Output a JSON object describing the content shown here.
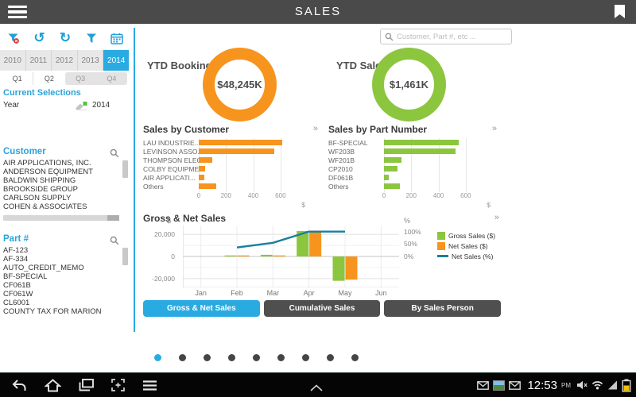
{
  "colors": {
    "accent_blue": "#29abe2",
    "icon_blue": "#219fd8",
    "orange": "#f7941e",
    "green": "#8cc63f",
    "teal": "#1a7f9c",
    "dark_gray": "#4a4a4a"
  },
  "top_bar": {
    "title": "SALES"
  },
  "icons": {
    "hamburger": "menu-lines",
    "bookmark": "bookmark",
    "clear_filter": "funnel+red-dot",
    "undo": "↺",
    "redo": "↻",
    "filter": "funnel",
    "calendar": "calendar-grid",
    "search": "magnifier",
    "erase_selection": "eraser+green-square",
    "expand": "»",
    "back": "curved-arrow",
    "home": "house",
    "recents": "stacked-windows",
    "screenshot": "capture-frame",
    "menu": "three-lines",
    "caret": "chevron-up",
    "envelope": "envelope",
    "picture": "photo-thumbnail",
    "mute": "speaker-x",
    "wifi": "wifi-fan",
    "signal": "signal-triangle",
    "battery": "battery-charging"
  },
  "sidebar": {
    "years": [
      "2010",
      "2011",
      "2012",
      "2013",
      "2014"
    ],
    "selected_year": "2014",
    "quarters": [
      "Q1",
      "Q2",
      "Q3",
      "Q4"
    ],
    "enabled_quarters": [
      "Q1",
      "Q2"
    ],
    "current_selections": {
      "title": "Current Selections",
      "rows": [
        {
          "field": "Year",
          "value": "2014"
        }
      ]
    },
    "customer": {
      "title": "Customer",
      "items": [
        "AIR APPLICATIONS, INC.",
        "ANDERSON EQUIPMENT",
        "BALDWIN SHIPPING",
        "BROOKSIDE GROUP",
        "CARLSON SUPPLY",
        "COHEN & ASSOCIATES"
      ]
    },
    "part": {
      "title": "Part #",
      "items": [
        "AF-123",
        "AF-334",
        "AUTO_CREDIT_MEMO",
        "BF-SPECIAL",
        "CF061B",
        "CF061W",
        "CL6001",
        "COUNTY TAX FOR MARION"
      ]
    }
  },
  "search": {
    "placeholder": "Customer, Part #, etc ..."
  },
  "kpis": [
    {
      "label": "YTD Bookings:",
      "value": "$48,245K",
      "color": "#f7941e"
    },
    {
      "label": "YTD Sales:",
      "value": "$1,461K",
      "color": "#8cc63f"
    }
  ],
  "chart_data": [
    {
      "type": "bar",
      "orientation": "horizontal",
      "title": "Sales by Customer",
      "color": "#f7941e",
      "categories": [
        "LAU INDUSTRIE...",
        "LEVINSON ASSO...",
        "THOMPSON ELEC...",
        "COLBY EQUIPME...",
        "AIR APPLICATI...",
        "Others"
      ],
      "values": [
        610,
        555,
        100,
        45,
        40,
        130
      ],
      "xticks": [
        0,
        200,
        400,
        600
      ],
      "xlim": [
        0,
        700
      ],
      "unit": "$"
    },
    {
      "type": "bar",
      "orientation": "horizontal",
      "title": "Sales by Part Number",
      "color": "#8cc63f",
      "categories": [
        "BF-SPECIAL",
        "WF203B",
        "WF201B",
        "CP2010",
        "DF061B",
        "Others"
      ],
      "values": [
        550,
        525,
        130,
        100,
        35,
        115
      ],
      "xticks": [
        0,
        200,
        400,
        600
      ],
      "xlim": [
        0,
        700
      ],
      "unit": "$"
    },
    {
      "type": "combo",
      "title": "Gross & Net Sales",
      "categories": [
        "Jan",
        "Feb",
        "Mar",
        "Apr",
        "May",
        "Jun"
      ],
      "unit_left": "$",
      "unit_right": "%",
      "ylim": [
        -28000,
        28000
      ],
      "yticks": [
        {
          "v": 20000,
          "label": "20,000"
        },
        {
          "v": 0,
          "label": "0"
        },
        {
          "v": -20000,
          "label": "-20,000"
        }
      ],
      "minor_gridlines": [
        10000,
        -10000
      ],
      "right_axis": {
        "pct_to_dollar": 225,
        "ticks": [
          {
            "v": 100,
            "label": "100%"
          },
          {
            "v": 50,
            "label": "50%"
          },
          {
            "v": 0,
            "label": "0%"
          }
        ]
      },
      "series": [
        {
          "name": "Gross Sales ($)",
          "type": "bar",
          "color": "#8cc63f",
          "values": [
            0,
            300,
            1500,
            23000,
            -22000,
            0
          ]
        },
        {
          "name": "Net Sales ($)",
          "type": "bar",
          "color": "#f7941e",
          "values": [
            0,
            400,
            400,
            22000,
            -21000,
            0
          ]
        },
        {
          "name": "Net Sales (%)",
          "type": "line",
          "color": "#1a7f9c",
          "values": [
            null,
            36,
            55,
            100,
            100,
            null
          ]
        }
      ],
      "legend_position": "right",
      "grid": true
    }
  ],
  "bottom_tabs": [
    {
      "label": "Gross & Net Sales",
      "active": true
    },
    {
      "label": "Cumulative Sales",
      "active": false
    },
    {
      "label": "By Sales Person",
      "active": false
    }
  ],
  "pagination": {
    "count": 9,
    "active": 0
  },
  "status_bar": {
    "clock": "12:53",
    "meridiem": "PM"
  }
}
